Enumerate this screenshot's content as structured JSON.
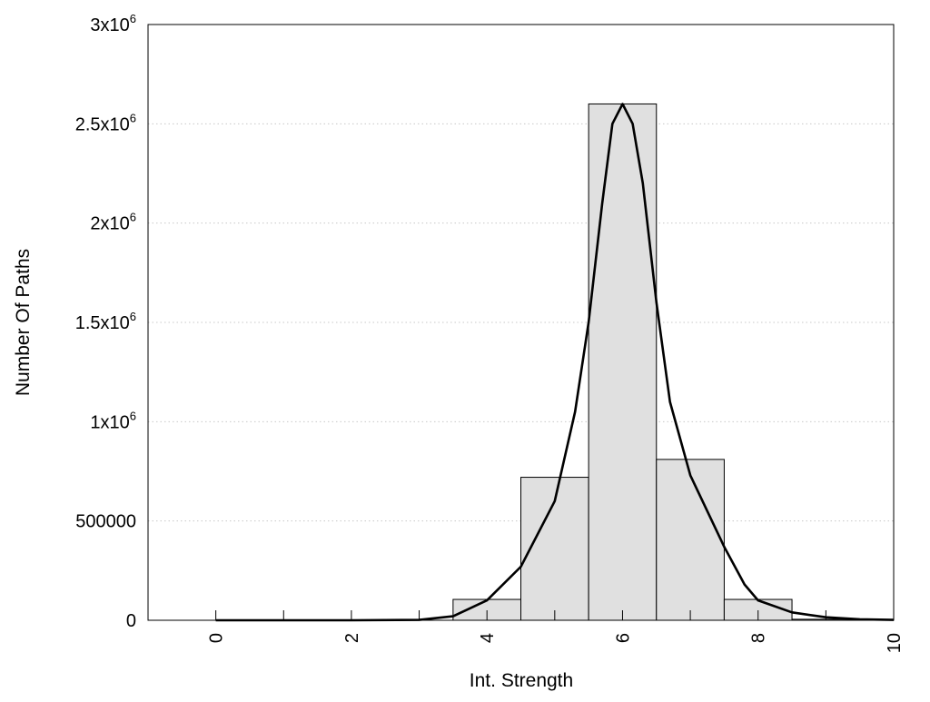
{
  "chart_data": {
    "type": "bar",
    "title": "",
    "xlabel": "Int. Strength",
    "ylabel": "Number Of Paths",
    "xlim": [
      -1,
      10
    ],
    "ylim": [
      0,
      3000000
    ],
    "grid": "horizontal-dotted",
    "legend": "none",
    "x_ticks": [
      {
        "value": 0,
        "label": "0"
      },
      {
        "value": 2,
        "label": "2"
      },
      {
        "value": 4,
        "label": "4"
      },
      {
        "value": 6,
        "label": "6"
      },
      {
        "value": 8,
        "label": "8"
      },
      {
        "value": 10,
        "label": "10"
      }
    ],
    "y_ticks": [
      {
        "value": 0,
        "base": "0",
        "exp": ""
      },
      {
        "value": 500000,
        "base": "500000",
        "exp": ""
      },
      {
        "value": 1000000,
        "base": "1x10",
        "exp": "6"
      },
      {
        "value": 1500000,
        "base": "1.5x10",
        "exp": "6"
      },
      {
        "value": 2000000,
        "base": "2x10",
        "exp": "6"
      },
      {
        "value": 2500000,
        "base": "2.5x10",
        "exp": "6"
      },
      {
        "value": 3000000,
        "base": "3x10",
        "exp": "6"
      }
    ],
    "bars": {
      "bin_width": 1,
      "centers": [
        0,
        1,
        2,
        3,
        4,
        5,
        6,
        7,
        8,
        9
      ],
      "values": [
        0,
        0,
        0,
        0,
        105000,
        720000,
        2600000,
        810000,
        105000,
        5000
      ],
      "fill": "#e0e0e0",
      "stroke": "#000000"
    },
    "curve": {
      "color": "#000000",
      "points": [
        [
          0,
          0
        ],
        [
          1,
          0
        ],
        [
          2,
          0
        ],
        [
          3,
          2000
        ],
        [
          3.5,
          20000
        ],
        [
          4,
          100000
        ],
        [
          4.5,
          270000
        ],
        [
          5,
          600000
        ],
        [
          5.3,
          1050000
        ],
        [
          5.5,
          1500000
        ],
        [
          5.7,
          2100000
        ],
        [
          5.85,
          2500000
        ],
        [
          6,
          2600000
        ],
        [
          6.15,
          2500000
        ],
        [
          6.3,
          2200000
        ],
        [
          6.5,
          1600000
        ],
        [
          6.7,
          1100000
        ],
        [
          7,
          730000
        ],
        [
          7.5,
          370000
        ],
        [
          7.8,
          180000
        ],
        [
          8,
          100000
        ],
        [
          8.5,
          40000
        ],
        [
          9,
          15000
        ],
        [
          9.5,
          5000
        ],
        [
          10,
          2000
        ]
      ]
    }
  }
}
